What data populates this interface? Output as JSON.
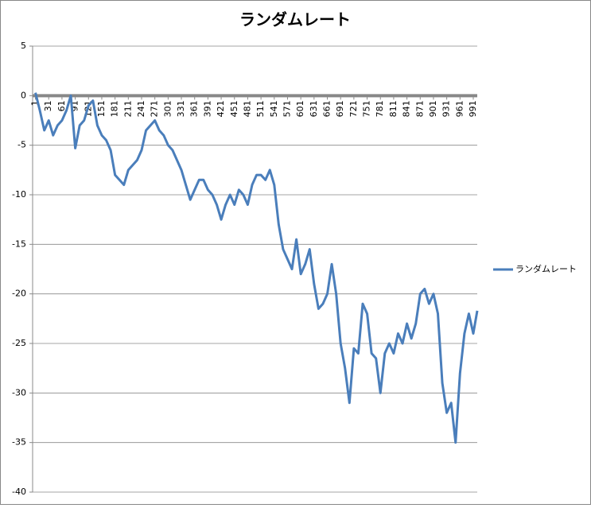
{
  "chart_data": {
    "type": "line",
    "title": "ランダムレート",
    "x": [
      1,
      11,
      21,
      31,
      41,
      51,
      61,
      71,
      81,
      91,
      101,
      111,
      121,
      131,
      141,
      151,
      161,
      171,
      181,
      191,
      201,
      211,
      221,
      231,
      241,
      251,
      261,
      271,
      281,
      291,
      301,
      311,
      321,
      331,
      341,
      351,
      361,
      371,
      381,
      391,
      401,
      411,
      421,
      431,
      441,
      451,
      461,
      471,
      481,
      491,
      501,
      511,
      521,
      531,
      541,
      551,
      561,
      571,
      581,
      591,
      601,
      611,
      621,
      631,
      641,
      651,
      661,
      671,
      681,
      691,
      701,
      711,
      721,
      731,
      741,
      751,
      761,
      771,
      781,
      791,
      801,
      811,
      821,
      831,
      841,
      851,
      861,
      871,
      881,
      891,
      901,
      911,
      921,
      931,
      941,
      951,
      961,
      971,
      981,
      991,
      1000
    ],
    "series": [
      {
        "name": "ランダムレート",
        "color": "#4a7ebb",
        "values": [
          0.3,
          -1.5,
          -3.5,
          -2.5,
          -4,
          -3,
          -2.5,
          -1.5,
          0,
          -5.3,
          -3,
          -2.5,
          -1,
          -0.5,
          -3,
          -4,
          -4.5,
          -5.5,
          -8,
          -8.5,
          -9,
          -7.5,
          -7,
          -6.5,
          -5.5,
          -3.5,
          -3,
          -2.5,
          -3.5,
          -4,
          -5,
          -5.5,
          -6.5,
          -7.5,
          -9,
          -10.5,
          -9.5,
          -8.5,
          -8.5,
          -9.5,
          -10,
          -11,
          -12.5,
          -11,
          -10,
          -11,
          -9.5,
          -10,
          -11,
          -9,
          -8,
          -8,
          -8.5,
          -7.5,
          -9,
          -13,
          -15.5,
          -16.5,
          -17.5,
          -14.5,
          -18,
          -17,
          -15.5,
          -19,
          -21.5,
          -21,
          -20,
          -17,
          -20,
          -25,
          -27.5,
          -31,
          -25.5,
          -26,
          -21,
          -22,
          -26,
          -26.5,
          -30,
          -26,
          -25,
          -26,
          -24,
          -25,
          -23,
          -24.5,
          -23,
          -20,
          -19.5,
          -21,
          -20,
          -22,
          -29,
          -32,
          -31,
          -35,
          -28,
          -24,
          -22,
          -24,
          -21.7
        ]
      }
    ],
    "xlim": [
      0,
      1000
    ],
    "xticks": [
      1,
      31,
      61,
      91,
      121,
      151,
      181,
      211,
      241,
      271,
      301,
      331,
      361,
      391,
      421,
      451,
      481,
      511,
      541,
      571,
      601,
      631,
      661,
      691,
      721,
      751,
      781,
      811,
      841,
      871,
      901,
      931,
      961,
      991
    ],
    "ylim": [
      -40,
      5
    ],
    "yticks": [
      5,
      0,
      -5,
      -10,
      -15,
      -20,
      -25,
      -30,
      -35,
      -40
    ],
    "grid": true,
    "legend": "right"
  }
}
